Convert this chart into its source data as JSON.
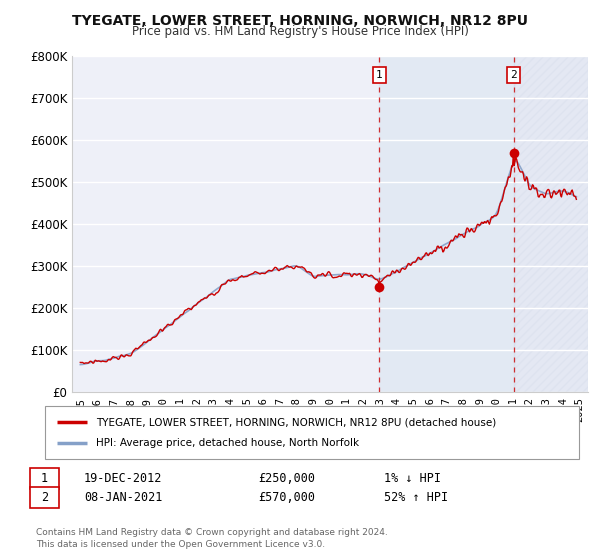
{
  "title": "TYEGATE, LOWER STREET, HORNING, NORWICH, NR12 8PU",
  "subtitle": "Price paid vs. HM Land Registry's House Price Index (HPI)",
  "ylim": [
    0,
    800000
  ],
  "yticks": [
    0,
    100000,
    200000,
    300000,
    400000,
    500000,
    600000,
    700000,
    800000
  ],
  "ytick_labels": [
    "£0",
    "£100K",
    "£200K",
    "£300K",
    "£400K",
    "£500K",
    "£600K",
    "£700K",
    "£800K"
  ],
  "xlim_start": 1994.5,
  "xlim_end": 2025.5,
  "background_color": "#ffffff",
  "plot_bg_color": "#eef0f8",
  "grid_color": "#ffffff",
  "hpi_color": "#85a0c8",
  "price_color": "#cc0000",
  "sale1_year": 2012.97,
  "sale1_price": 250000,
  "sale2_year": 2021.03,
  "sale2_price": 570000,
  "sale1_label": "1",
  "sale2_label": "2",
  "legend_label1": "TYEGATE, LOWER STREET, HORNING, NORWICH, NR12 8PU (detached house)",
  "legend_label2": "HPI: Average price, detached house, North Norfolk",
  "footnote": "Contains HM Land Registry data © Crown copyright and database right 2024.\nThis data is licensed under the Open Government Licence v3.0.",
  "shade_color": "#d8e4f0",
  "hatch_color": "#d0d8e8"
}
